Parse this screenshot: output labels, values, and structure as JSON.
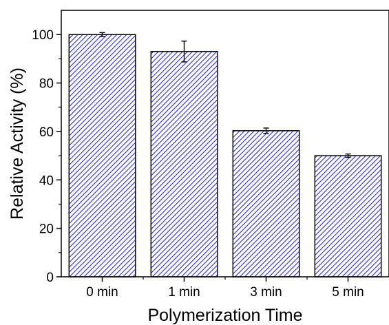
{
  "chart_data": {
    "type": "bar",
    "title": "",
    "xlabel": "Polymerization Time",
    "ylabel": "Relative Activity (%)",
    "categories": [
      "0 min",
      "1 min",
      "3 min",
      "5 min"
    ],
    "values": [
      100,
      93,
      60.3,
      50
    ],
    "errors": [
      0.8,
      4.3,
      1.1,
      0.7
    ],
    "ylim": [
      0,
      110
    ],
    "yticks": [
      0,
      20,
      40,
      60,
      80,
      100
    ],
    "grid": false,
    "legend": "none",
    "bar_fill": "#2b2bd0",
    "bar_pattern": "diagonal-hatch"
  }
}
